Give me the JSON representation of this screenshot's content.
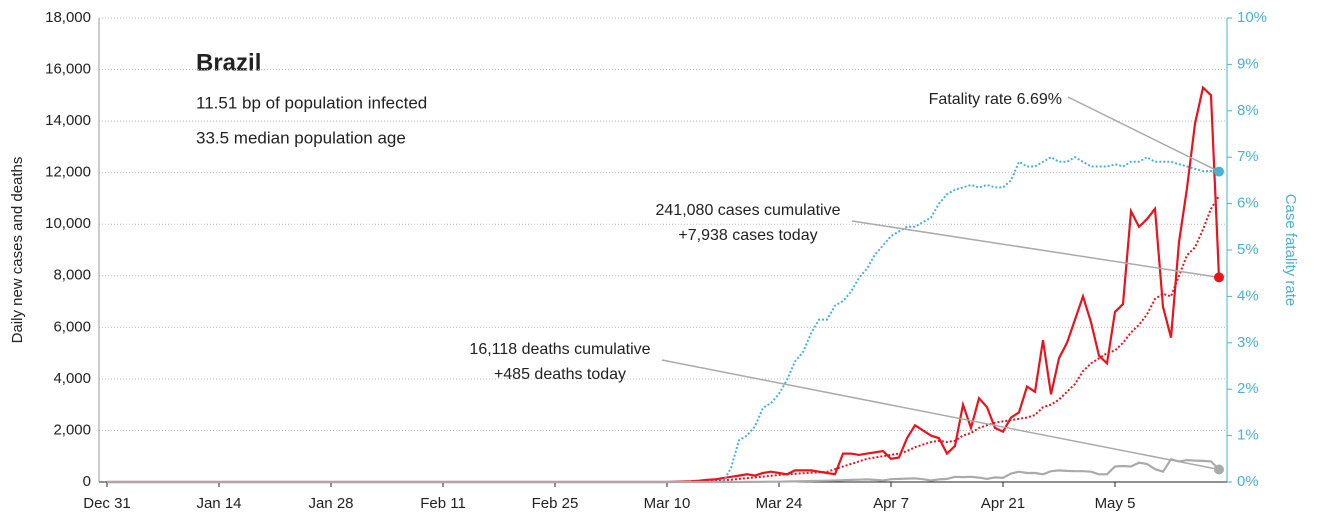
{
  "chart_data": {
    "type": "line",
    "title": "Brazil",
    "subtitle": [
      "11.51 bp of population infected",
      "33.5 median population age"
    ],
    "ylabel": "Daily new cases and deaths",
    "y2label": "Case fatality rate",
    "xlim": [
      -1,
      140
    ],
    "xticks": [
      {
        "value": 0,
        "label": "Dec 31"
      },
      {
        "value": 14,
        "label": "Jan 14"
      },
      {
        "value": 28,
        "label": "Jan 28"
      },
      {
        "value": 42,
        "label": "Feb 11"
      },
      {
        "value": 56,
        "label": "Feb 25"
      },
      {
        "value": 70,
        "label": "Mar 10"
      },
      {
        "value": 84,
        "label": "Mar 24"
      },
      {
        "value": 98,
        "label": "Apr 7"
      },
      {
        "value": 112,
        "label": "Apr 21"
      },
      {
        "value": 126,
        "label": "May 5"
      }
    ],
    "ylim": [
      0,
      18000
    ],
    "yticks": [
      0,
      {
        "value": 2000,
        "label": "2,000"
      },
      {
        "value": 4000,
        "label": "4,000"
      },
      {
        "value": 6000,
        "label": "6,000"
      },
      {
        "value": 8000,
        "label": "8,000"
      },
      {
        "value": 10000,
        "label": "10,000"
      },
      {
        "value": 12000,
        "label": "12,000"
      },
      {
        "value": 14000,
        "label": "14,000"
      },
      {
        "value": 16000,
        "label": "16,000"
      },
      {
        "value": 18000,
        "label": "18,000"
      }
    ],
    "y2lim": [
      0,
      10
    ],
    "y2ticks": [
      {
        "value": 0,
        "label": "0%"
      },
      {
        "value": 1,
        "label": "1%"
      },
      {
        "value": 2,
        "label": "2%"
      },
      {
        "value": 3,
        "label": "3%"
      },
      {
        "value": 4,
        "label": "4%"
      },
      {
        "value": 5,
        "label": "5%"
      },
      {
        "value": 6,
        "label": "6%"
      },
      {
        "value": 7,
        "label": "7%"
      },
      {
        "value": 8,
        "label": "8%"
      },
      {
        "value": 9,
        "label": "9%"
      },
      {
        "value": 10,
        "label": "10%"
      }
    ],
    "y2color": "#4ab3cc",
    "grid": true,
    "x": [
      0,
      70,
      71,
      72,
      73,
      74,
      75,
      76,
      77,
      78,
      79,
      80,
      81,
      82,
      83,
      84,
      85,
      86,
      87,
      88,
      89,
      90,
      91,
      92,
      93,
      94,
      95,
      96,
      97,
      98,
      99,
      100,
      101,
      102,
      103,
      104,
      105,
      106,
      107,
      108,
      109,
      110,
      111,
      112,
      113,
      114,
      115,
      116,
      117,
      118,
      119,
      120,
      121,
      122,
      123,
      124,
      125,
      126,
      127,
      128,
      129,
      130,
      131,
      132,
      133,
      134,
      135,
      136,
      137,
      138,
      139
    ],
    "series": [
      {
        "color": "#e8141b",
        "dash": "solid",
        "values": [
          0,
          0,
          10,
          20,
          30,
          50,
          80,
          100,
          150,
          200,
          250,
          300,
          250,
          350,
          400,
          350,
          300,
          450,
          450,
          450,
          400,
          350,
          300,
          1100,
          1100,
          1050,
          1100,
          1150,
          1200,
          900,
          950,
          1700,
          2200,
          2000,
          1800,
          1700,
          1100,
          1400,
          3000,
          2100,
          3250,
          2900,
          2100,
          1950,
          2500,
          2700,
          3700,
          3500,
          5500,
          3400,
          4800,
          5400,
          6300,
          7200,
          6200,
          4900,
          4600,
          6600,
          6900,
          10500,
          9900,
          10200,
          10600,
          6800,
          5600,
          9300,
          11400,
          13900,
          15300,
          15000,
          7938
        ]
      },
      {
        "color": "#e8141b",
        "dash": "dotted",
        "values": [
          0,
          0,
          2,
          5,
          10,
          15,
          25,
          40,
          60,
          90,
          120,
          150,
          180,
          210,
          240,
          270,
          300,
          320,
          340,
          360,
          380,
          390,
          500,
          600,
          700,
          800,
          900,
          950,
          1000,
          1050,
          1100,
          1200,
          1350,
          1450,
          1550,
          1600,
          1550,
          1600,
          1800,
          1900,
          2100,
          2200,
          2300,
          2350,
          2400,
          2450,
          2500,
          2600,
          2900,
          3000,
          3200,
          3500,
          3800,
          4300,
          4600,
          4800,
          5000,
          5100,
          5400,
          5800,
          6100,
          6500,
          7100,
          7300,
          7200,
          8000,
          8800,
          9100,
          9800,
          10600,
          11100
        ]
      },
      {
        "color": "#aaaaaa",
        "dash": "solid",
        "values": [
          0,
          0,
          0,
          0,
          0,
          0,
          0,
          0,
          0,
          0,
          1,
          3,
          5,
          7,
          10,
          12,
          20,
          25,
          30,
          40,
          45,
          50,
          60,
          70,
          80,
          90,
          100,
          80,
          60,
          110,
          120,
          130,
          140,
          110,
          60,
          100,
          120,
          200,
          190,
          200,
          170,
          120,
          180,
          160,
          330,
          400,
          350,
          350,
          300,
          420,
          450,
          430,
          420,
          420,
          400,
          300,
          300,
          600,
          620,
          600,
          750,
          700,
          500,
          400,
          880,
          800,
          850,
          830,
          820,
          800,
          485
        ]
      },
      {
        "color": "#4ab3cc",
        "dash": "dotted",
        "axis": "y2",
        "values": [
          null,
          null,
          null,
          null,
          null,
          null,
          null,
          null,
          0,
          0.3,
          0.9,
          1.0,
          1.2,
          1.6,
          1.7,
          1.9,
          2.2,
          2.6,
          2.8,
          3.2,
          3.5,
          3.5,
          3.8,
          3.9,
          4.1,
          4.4,
          4.6,
          4.9,
          5.1,
          5.3,
          5.4,
          5.5,
          5.5,
          5.6,
          5.7,
          6.0,
          6.2,
          6.3,
          6.35,
          6.4,
          6.35,
          6.4,
          6.35,
          6.35,
          6.5,
          6.9,
          6.8,
          6.8,
          6.9,
          7.0,
          6.9,
          6.9,
          7.0,
          6.9,
          6.8,
          6.8,
          6.8,
          6.85,
          6.8,
          6.9,
          6.9,
          7.0,
          6.9,
          6.9,
          6.9,
          6.85,
          6.8,
          6.75,
          6.7,
          6.7,
          6.69
        ]
      }
    ],
    "annotations": [
      {
        "lines": [
          "Fatality rate 6.69%"
        ]
      },
      {
        "lines": [
          "241,080 cases cumulative",
          "+7,938 cases today"
        ]
      },
      {
        "lines": [
          "16,118 deaths cumulative",
          "+485 deaths today"
        ]
      }
    ]
  }
}
